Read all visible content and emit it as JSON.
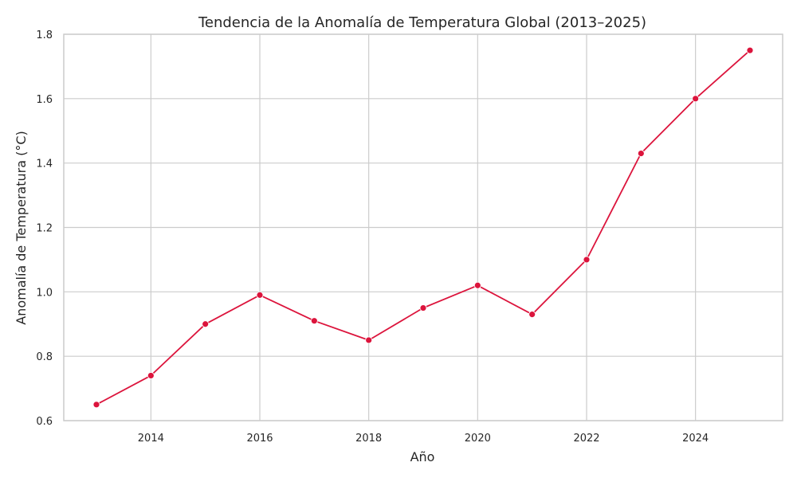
{
  "chart_data": {
    "type": "line",
    "title": "Tendencia de la Anomalía de Temperatura Global (2013–2025)",
    "xlabel": "Año",
    "ylabel": "Anomalía de Temperatura (°C)",
    "x": [
      2013,
      2014,
      2015,
      2016,
      2017,
      2018,
      2019,
      2020,
      2021,
      2022,
      2023,
      2024,
      2025
    ],
    "series": [
      {
        "values": [
          0.65,
          0.74,
          0.9,
          0.99,
          0.91,
          0.85,
          0.95,
          1.02,
          0.93,
          1.1,
          1.43,
          1.6,
          1.75
        ],
        "color": "#dc143c"
      }
    ],
    "xlim": [
      2012.4,
      2025.6
    ],
    "ylim": [
      0.6,
      1.8
    ],
    "xticks": [
      2014,
      2016,
      2018,
      2020,
      2022,
      2024
    ],
    "yticks": [
      0.6,
      0.8,
      1.0,
      1.2,
      1.4,
      1.6,
      1.8
    ],
    "ytick_labels": [
      "0.6",
      "0.8",
      "1.0",
      "1.2",
      "1.4",
      "1.6",
      "1.8"
    ],
    "grid": true,
    "legend": "none"
  }
}
